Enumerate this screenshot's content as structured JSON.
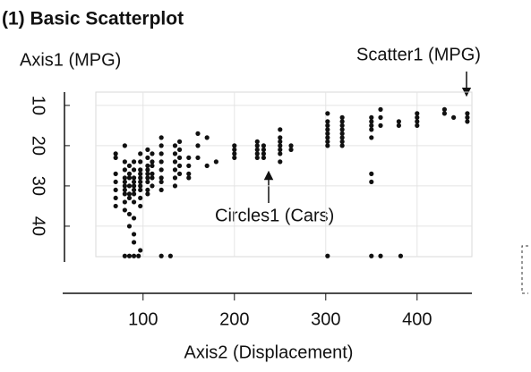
{
  "chart_data": {
    "type": "scatter",
    "title": "(1) Basic Scatterplot",
    "y_label": "Axis1 (MPG)",
    "x_label": "Axis2 (Displacement)",
    "annotations": [
      "Scatter1 (MPG)",
      "Circles1 (Cars)"
    ],
    "color": "#111111",
    "grid": true,
    "y_reversed": true,
    "xlim": [
      12,
      460
    ],
    "ylim": [
      6.7,
      48.9
    ],
    "xticks": [
      100,
      200,
      300,
      400
    ],
    "yticks": [
      10,
      20,
      30,
      40
    ],
    "x": [
      70,
      70,
      70,
      70,
      70,
      70,
      70,
      80,
      80,
      80,
      80,
      80,
      80,
      80,
      80,
      80,
      80,
      85,
      85,
      85,
      85,
      85,
      85,
      85,
      85,
      90,
      90,
      90,
      90,
      90,
      90,
      90,
      90,
      90,
      90,
      90,
      97,
      97,
      97,
      97,
      97,
      97,
      97,
      97,
      97,
      97,
      97,
      105,
      105,
      105,
      105,
      105,
      105,
      105,
      105,
      105,
      110,
      110,
      110,
      110,
      110,
      110,
      120,
      120,
      120,
      120,
      120,
      120,
      120,
      120,
      135,
      135,
      135,
      135,
      135,
      135,
      140,
      140,
      140,
      140,
      140,
      150,
      150,
      150,
      150,
      160,
      160,
      160,
      170,
      170,
      180,
      200,
      200,
      200,
      200,
      225,
      225,
      225,
      225,
      225,
      232,
      232,
      232,
      232,
      250,
      250,
      250,
      250,
      250,
      250,
      250,
      262,
      262,
      302,
      302,
      302,
      302,
      302,
      302,
      302,
      302,
      318,
      318,
      318,
      318,
      318,
      318,
      318,
      318,
      350,
      350,
      350,
      350,
      350,
      350,
      350,
      360,
      360,
      360,
      380,
      380,
      400,
      400,
      400,
      400,
      430,
      430,
      440,
      455,
      455,
      455,
      80,
      85,
      90,
      95,
      120,
      130,
      302,
      350,
      360,
      382
    ],
    "values": [
      22,
      23,
      27,
      29,
      31,
      33,
      35,
      20,
      24,
      26,
      28,
      29,
      30,
      31,
      32,
      34,
      36,
      25,
      27,
      28,
      30,
      32,
      33,
      37,
      40,
      24,
      26,
      28,
      29,
      30,
      31,
      32,
      34,
      38,
      42,
      44,
      22,
      24,
      26,
      27,
      28,
      29,
      30,
      31,
      33,
      35,
      46,
      21,
      23,
      25,
      26,
      27,
      28,
      29,
      31,
      32,
      22,
      24,
      25,
      27,
      28,
      30,
      18,
      20,
      22,
      24,
      26,
      28,
      29,
      31,
      20,
      22,
      24,
      26,
      28,
      30,
      19,
      21,
      23,
      25,
      27,
      23,
      25,
      27,
      28,
      17,
      20,
      23,
      18,
      25,
      24,
      20,
      21,
      22,
      23,
      19,
      20,
      21,
      22,
      23,
      20,
      21,
      22,
      23,
      16,
      18,
      19,
      20,
      21,
      22,
      24,
      20,
      21,
      12,
      14,
      15,
      16,
      17,
      18,
      19,
      20,
      13,
      14,
      15,
      16,
      17,
      18,
      19,
      20,
      13,
      14,
      15,
      16,
      18,
      27,
      29,
      11,
      13,
      15,
      14,
      15,
      12,
      13,
      14,
      15,
      11,
      12,
      13,
      12,
      13,
      14,
      47.4,
      47.4,
      47.4,
      47.4,
      47.4,
      47.4,
      47.4,
      47.4,
      47.4,
      47.4
    ]
  }
}
